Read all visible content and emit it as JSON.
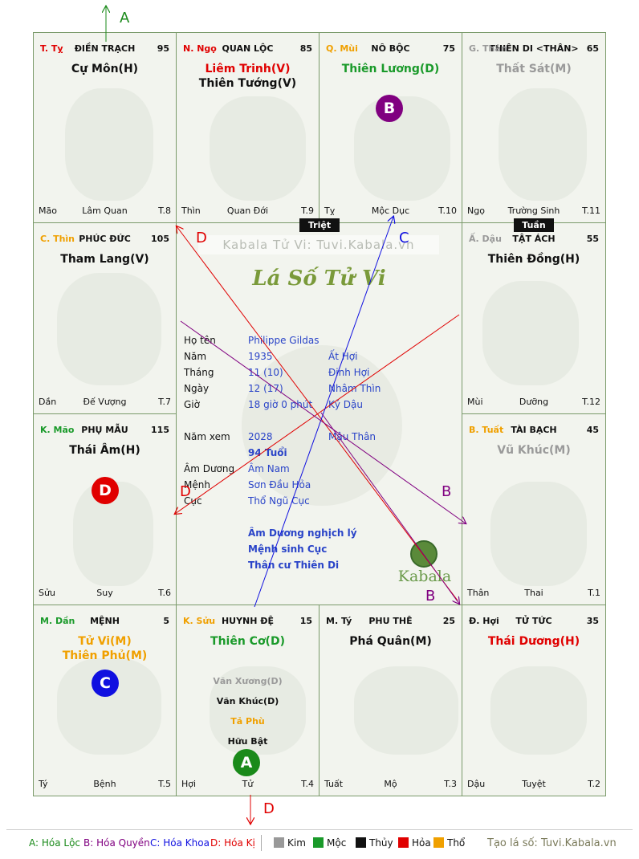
{
  "center": {
    "watermark": "Kabala Tử Vi: Tuvi.Kabala.vn",
    "title": "Lá Số Tử Vi",
    "rows": [
      {
        "label": "Họ tên",
        "v1": "Philippe Gildas",
        "v2": ""
      },
      {
        "label": "Năm",
        "v1": "1935",
        "v2": "Ất Hợi"
      },
      {
        "label": "Tháng",
        "v1": "11 (10)",
        "v2": "Đinh Hợi"
      },
      {
        "label": "Ngày",
        "v1": "12  (17)",
        "v2": "Nhâm Thìn"
      },
      {
        "label": "Giờ",
        "v1": "18 giờ 0 phút",
        "v2": "Kỷ Dậu"
      },
      {
        "label": "Năm xem",
        "v1": "2028",
        "v2": "Mậu Thân"
      },
      {
        "label": "",
        "v1": "94 Tuổi",
        "v2": ""
      },
      {
        "label": "Âm Dương",
        "v1": "Âm Nam",
        "v2": ""
      },
      {
        "label": "Mệnh",
        "v1": "Sơn Đầu Hỏa",
        "v2": ""
      },
      {
        "label": "Cục",
        "v1": "Thổ Ngũ Cục",
        "v2": ""
      }
    ],
    "notes": [
      "Âm Dương nghịch lý",
      "Mệnh sinh Cục",
      "Thân cư Thiên Di"
    ],
    "logo_text": "Kabala"
  },
  "tags": {
    "triet": "Triệt",
    "tuan": "Tuần"
  },
  "palaces": [
    {
      "branch": "T. Tỵ",
      "branch_color": "#e00000",
      "name": "ĐIỀN TRẠCH",
      "num": "95",
      "stars": [
        {
          "t": "Cự Môn(H)",
          "c": "#111111"
        }
      ],
      "foot": [
        "Mão",
        "Lâm Quan",
        "T.8"
      ]
    },
    {
      "branch": "N. Ngọ",
      "branch_color": "#e00000",
      "name": "QUAN LỘC",
      "num": "85",
      "stars": [
        {
          "t": "Liêm Trinh(V)",
          "c": "#e00000"
        },
        {
          "t": "Thiên Tướng(V)",
          "c": "#111111"
        }
      ],
      "foot": [
        "Thìn",
        "Quan Đới",
        "T.9"
      ]
    },
    {
      "branch": "Q. Mùi",
      "branch_color": "#f0a000",
      "name": "NÔ BỘC",
      "num": "75",
      "stars": [
        {
          "t": "Thiên Lương(D)",
          "c": "#1a9a2a"
        }
      ],
      "foot": [
        "Tỵ",
        "Mộc Dục",
        "T.10"
      ]
    },
    {
      "branch": "G. Thân",
      "branch_color": "#999999",
      "name": "THIÊN DI <THÂN>",
      "num": "65",
      "stars": [
        {
          "t": "Thất Sát(M)",
          "c": "#9a9a9a"
        }
      ],
      "foot": [
        "Ngọ",
        "Trường Sinh",
        "T.11"
      ]
    },
    {
      "branch": "C. Thìn",
      "branch_color": "#f0a000",
      "name": "PHÚC ĐỨC",
      "num": "105",
      "stars": [
        {
          "t": "Tham Lang(V)",
          "c": "#111111"
        }
      ],
      "foot": [
        "Dần",
        "Đế Vượng",
        "T.7"
      ]
    },
    {
      "branch": "Ấ. Dậu",
      "branch_color": "#999999",
      "name": "TẬT ÁCH",
      "num": "55",
      "stars": [
        {
          "t": "Thiên Đồng(H)",
          "c": "#111111"
        }
      ],
      "foot": [
        "Mùi",
        "Dưỡng",
        "T.12"
      ]
    },
    {
      "branch": "K. Mão",
      "branch_color": "#1a9a2a",
      "name": "PHỤ MẪU",
      "num": "115",
      "stars": [
        {
          "t": "Thái Âm(H)",
          "c": "#111111"
        }
      ],
      "foot": [
        "Sửu",
        "Suy",
        "T.6"
      ]
    },
    {
      "branch": "B. Tuất",
      "branch_color": "#f0a000",
      "name": "TÀI BẠCH",
      "num": "45",
      "stars": [
        {
          "t": "Vũ Khúc(M)",
          "c": "#9a9a9a"
        }
      ],
      "foot": [
        "Thân",
        "Thai",
        "T.1"
      ]
    },
    {
      "branch": "M. Dần",
      "branch_color": "#1a9a2a",
      "name": "MỆNH",
      "num": "5",
      "stars": [
        {
          "t": "Tử Vi(M)",
          "c": "#f0a000"
        },
        {
          "t": "Thiên Phủ(M)",
          "c": "#f0a000"
        }
      ],
      "foot": [
        "Tý",
        "Bệnh",
        "T.5"
      ]
    },
    {
      "branch": "K. Sửu",
      "branch_color": "#f0a000",
      "name": "HUYNH ĐỆ",
      "num": "15",
      "stars": [
        {
          "t": "Thiên Cơ(D)",
          "c": "#1a9a2a"
        }
      ],
      "foot": [
        "Hợi",
        "Tử",
        "T.4"
      ]
    },
    {
      "branch": "M. Tý",
      "branch_color": "#111111",
      "name": "PHU THÊ",
      "num": "25",
      "stars": [
        {
          "t": "Phá Quân(M)",
          "c": "#111111"
        }
      ],
      "foot": [
        "Tuất",
        "Mộ",
        "T.3"
      ]
    },
    {
      "branch": "Đ. Hợi",
      "branch_color": "#111111",
      "name": "TỬ TỨC",
      "num": "35",
      "stars": [
        {
          "t": "Thái Dương(H)",
          "c": "#e00000"
        }
      ],
      "foot": [
        "Dậu",
        "Tuyệt",
        "T.2"
      ]
    }
  ],
  "minor_stars": [
    {
      "t": "Văn Xương(D)",
      "c": "#9a9a9a"
    },
    {
      "t": "Văn Khúc(D)",
      "c": "#111111"
    },
    {
      "t": "Tả Phù",
      "c": "#f0a000"
    },
    {
      "t": "Hữu Bật",
      "c": "#111111"
    }
  ],
  "circles": [
    {
      "letter": "A",
      "color": "#1a8a1a"
    },
    {
      "letter": "B",
      "color": "#800080"
    },
    {
      "letter": "C",
      "color": "#1010e0"
    },
    {
      "letter": "D",
      "color": "#e00000"
    }
  ],
  "arrow_labels": {
    "a": "A",
    "b": "B",
    "c": "C",
    "d": "D"
  },
  "legend": {
    "a": "A: Hóa Lộc",
    "b": "B: Hóa Quyền",
    "c": "C: Hóa Khoa",
    "d": "D: Hóa Kị",
    "elements": [
      {
        "name": "Kim",
        "color": "#999999"
      },
      {
        "name": "Mộc",
        "color": "#1a9a2a"
      },
      {
        "name": "Thủy",
        "color": "#111111"
      },
      {
        "name": "Hỏa",
        "color": "#e00000"
      },
      {
        "name": "Thổ",
        "color": "#f0a000"
      }
    ],
    "site": "Tạo lá số: Tuvi.Kabala.vn"
  }
}
